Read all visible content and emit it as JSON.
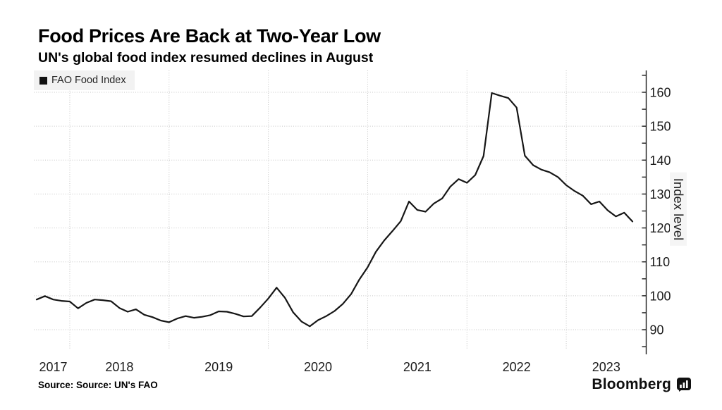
{
  "header": {
    "title": "Food Prices Are Back at Two-Year Low",
    "subtitle": "UN's global food index resumed declines in August"
  },
  "legend": {
    "label": "FAO Food Index",
    "swatch_color": "#111111"
  },
  "footer": {
    "source": "Source: Source: UN's FAO",
    "brand": "Bloomberg"
  },
  "colors": {
    "line": "#161616",
    "grid": "#c6c6c6",
    "axis": "#1a1a1a",
    "tick_text": "#1a1a1a",
    "legend_bg": "#f2f2f2"
  },
  "chart_data": {
    "type": "line",
    "title": "Food Prices Are Back at Two-Year Low",
    "subtitle": "UN's global food index resumed declines in August",
    "ylabel": "Index level",
    "xlabel": "",
    "ylim": [
      85,
      165
    ],
    "yticks_labeled": [
      90,
      100,
      110,
      120,
      130,
      140,
      150,
      160
    ],
    "ytick_minor_step": 5,
    "grid": "dotted",
    "legend_position": "top-left",
    "axis_side": "right",
    "x_gridline_years": [
      2018,
      2019,
      2020,
      2021,
      2022,
      2023
    ],
    "x_labels": [
      "2017",
      "2018",
      "2019",
      "2020",
      "2021",
      "2022",
      "2023"
    ],
    "series": [
      {
        "name": "FAO Food Index",
        "frequency": "monthly",
        "start_month": "2017-08",
        "end_month": "2023-08",
        "values": [
          98.9,
          99.9,
          98.9,
          98.5,
          98.3,
          96.3,
          97.9,
          98.9,
          98.7,
          98.4,
          96.4,
          95.3,
          96.0,
          94.4,
          93.7,
          92.7,
          92.2,
          93.3,
          94.0,
          93.5,
          93.8,
          94.3,
          95.4,
          95.3,
          94.7,
          93.9,
          94.0,
          96.5,
          99.2,
          102.4,
          99.4,
          95.1,
          92.4,
          91.0,
          92.8,
          94.0,
          95.5,
          97.6,
          100.5,
          104.8,
          108.4,
          113.0,
          116.3,
          119.1,
          122.0,
          127.8,
          125.3,
          124.8,
          127.2,
          128.7,
          132.2,
          134.4,
          133.3,
          135.6,
          141.2,
          159.8,
          159.0,
          158.3,
          155.5,
          141.3,
          138.5,
          137.2,
          136.4,
          135.0,
          132.6,
          130.9,
          129.5,
          127.0,
          127.8,
          125.2,
          123.4,
          124.5,
          121.9
        ]
      }
    ]
  }
}
